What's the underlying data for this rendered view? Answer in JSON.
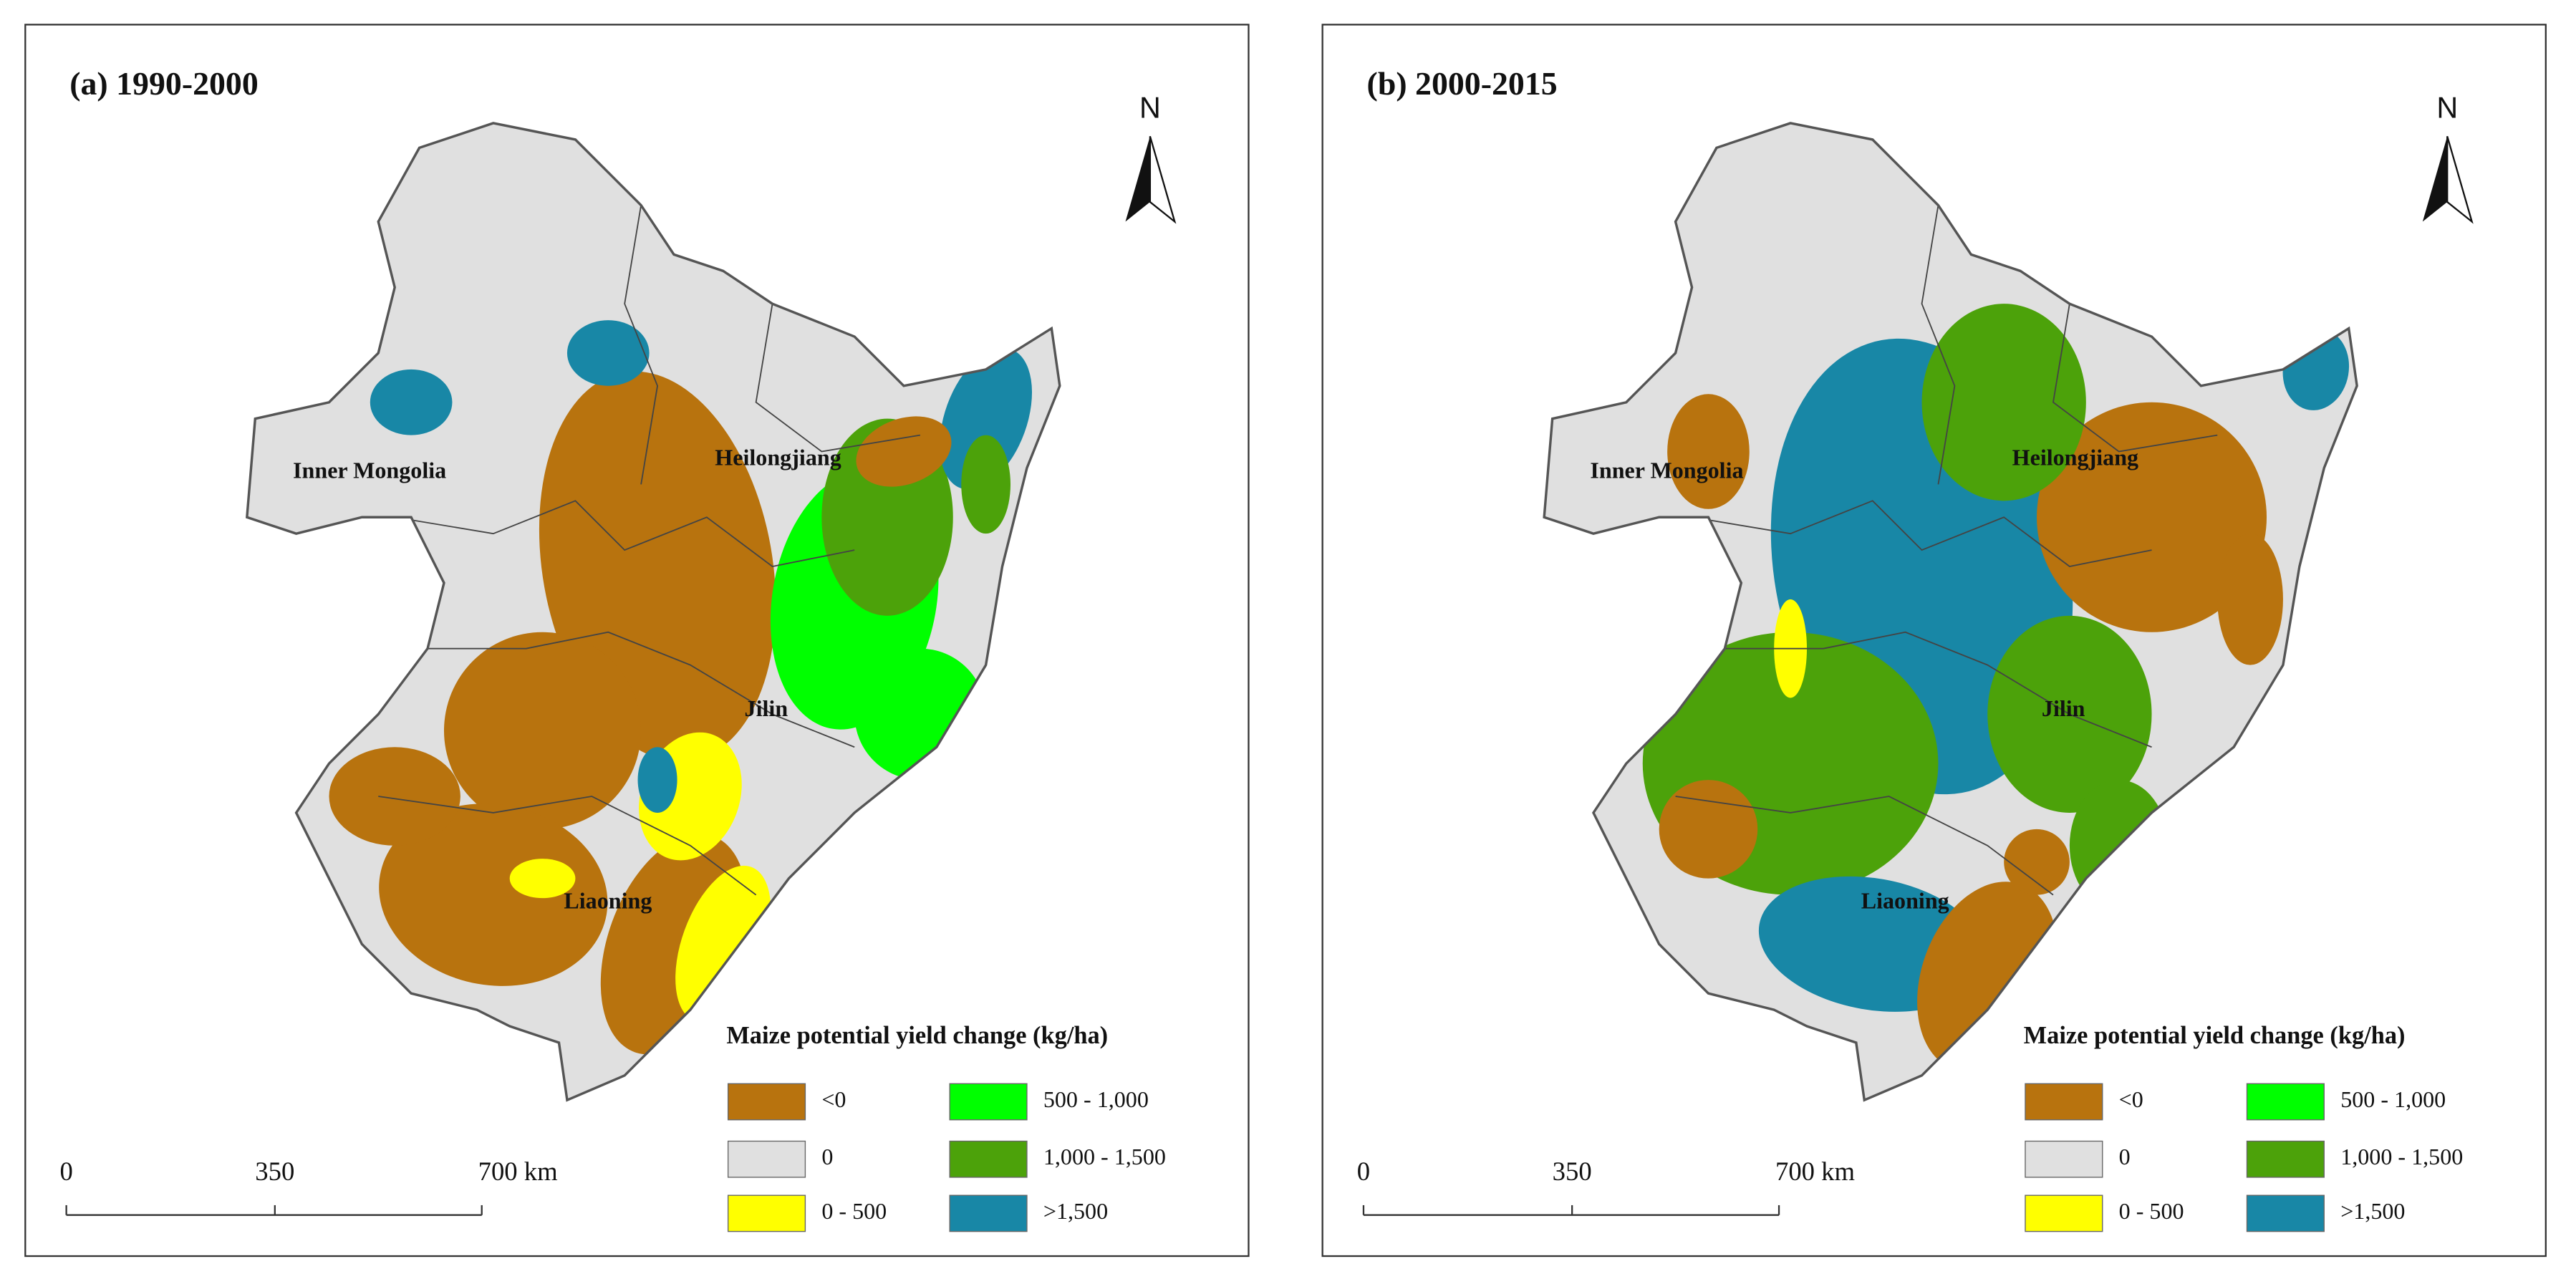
{
  "panels": [
    {
      "title": "(a) 1990-2000",
      "regions": [
        "Inner Mongolia",
        "Heilongjiang",
        "Jilin",
        "Liaoning"
      ],
      "north": "N",
      "scale": [
        "0",
        "350",
        "700 km"
      ],
      "legend": {
        "title": "Maize potential yield change (kg/ha)",
        "items": [
          {
            "label": "<0",
            "color": "#b8730e"
          },
          {
            "label": "0",
            "color": "#e0e0e0"
          },
          {
            "label": "0 - 500",
            "color": "#ffff00"
          },
          {
            "label": "500 - 1,000",
            "color": "#00ff00"
          },
          {
            "label": "1,000 - 1,500",
            "color": "#4ca20a"
          },
          {
            "label": ">1,500",
            "color": "#1887a6"
          }
        ]
      }
    },
    {
      "title": "(b) 2000-2015",
      "regions": [
        "Inner Mongolia",
        "Heilongjiang",
        "Jilin",
        "Liaoning"
      ],
      "north": "N",
      "scale": [
        "0",
        "350",
        "700 km"
      ],
      "legend": {
        "title": "Maize potential yield change (kg/ha)",
        "items": [
          {
            "label": "<0",
            "color": "#b8730e"
          },
          {
            "label": "0",
            "color": "#e0e0e0"
          },
          {
            "label": "0 - 500",
            "color": "#ffff00"
          },
          {
            "label": "500 - 1,000",
            "color": "#00ff00"
          },
          {
            "label": "1,000 - 1,500",
            "color": "#4ca20a"
          },
          {
            "label": ">1,500",
            "color": "#1887a6"
          }
        ]
      }
    }
  ]
}
